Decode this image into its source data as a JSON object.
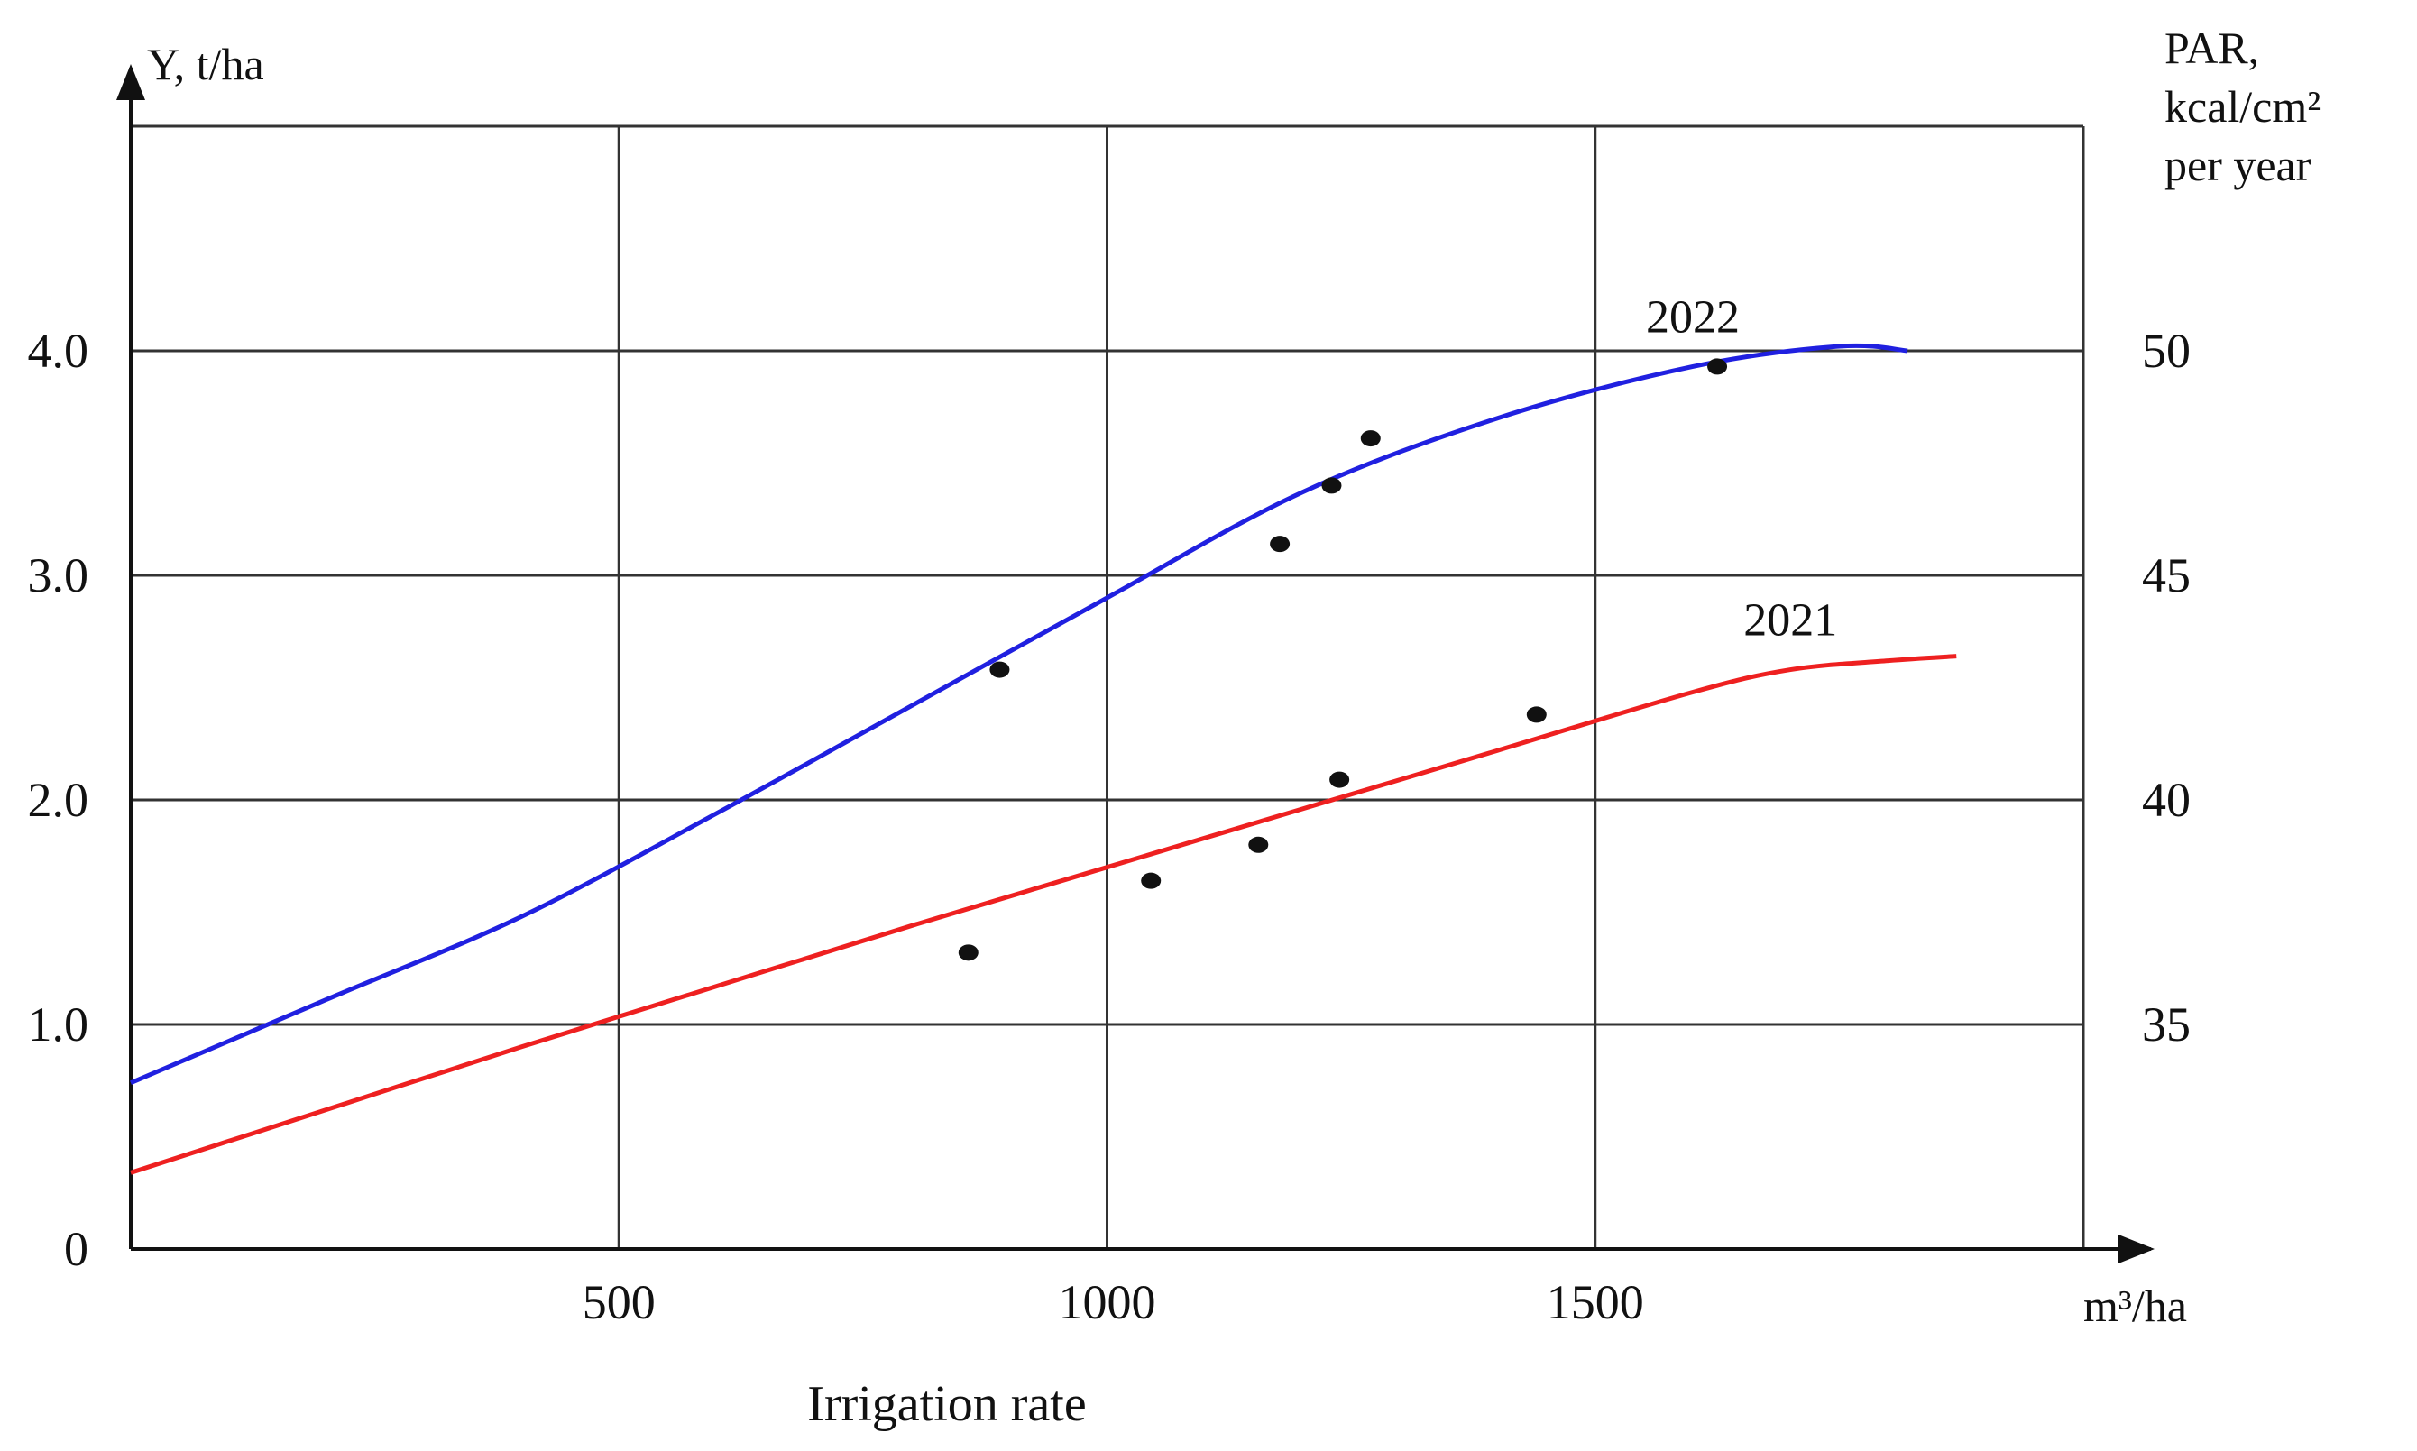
{
  "chart_data": {
    "type": "line",
    "ylabel": "Y, t/ha",
    "y2label": [
      "PAR,",
      "kcal/cm²",
      "per year"
    ],
    "xunit": "m³/ha",
    "xlabel": "Irrigation rate",
    "xlim": [
      0,
      2000
    ],
    "ylim": [
      0,
      5.0
    ],
    "xticks": [
      500,
      1000,
      1500
    ],
    "xtick_labels": [
      "500",
      "1000",
      "1500"
    ],
    "yticks": [
      0,
      1.0,
      2.0,
      3.0,
      4.0
    ],
    "ytick_labels": [
      "0",
      "1.0",
      "2.0",
      "3.0",
      "4.0"
    ],
    "y2ticks": [
      {
        "y": 1.0,
        "label": "35"
      },
      {
        "y": 2.0,
        "label": "40"
      },
      {
        "y": 3.0,
        "label": "45"
      },
      {
        "y": 4.0,
        "label": "50"
      }
    ],
    "grid": true,
    "series": [
      {
        "name": "2022",
        "color": "#2020e0",
        "x": [
          0,
          200,
          400,
          600,
          800,
          1000,
          1200,
          1400,
          1600,
          1750,
          1820
        ],
        "values": [
          0.74,
          1.11,
          1.48,
          1.94,
          2.42,
          2.9,
          3.37,
          3.7,
          3.93,
          4.02,
          4.0
        ]
      },
      {
        "name": "2021",
        "color": "#ee2020",
        "x": [
          0,
          200,
          400,
          600,
          800,
          1000,
          1200,
          1400,
          1600,
          1700,
          1800,
          1870
        ],
        "values": [
          0.34,
          0.62,
          0.9,
          1.17,
          1.44,
          1.7,
          1.96,
          2.22,
          2.48,
          2.58,
          2.62,
          2.64
        ]
      }
    ],
    "points": [
      {
        "x": 890,
        "y": 2.58
      },
      {
        "x": 1177,
        "y": 3.14
      },
      {
        "x": 1230,
        "y": 3.4
      },
      {
        "x": 1270,
        "y": 3.61
      },
      {
        "x": 1625,
        "y": 3.93
      },
      {
        "x": 858,
        "y": 1.32
      },
      {
        "x": 1045,
        "y": 1.64
      },
      {
        "x": 1155,
        "y": 1.8
      },
      {
        "x": 1238,
        "y": 2.09
      },
      {
        "x": 1440,
        "y": 2.38
      }
    ]
  }
}
